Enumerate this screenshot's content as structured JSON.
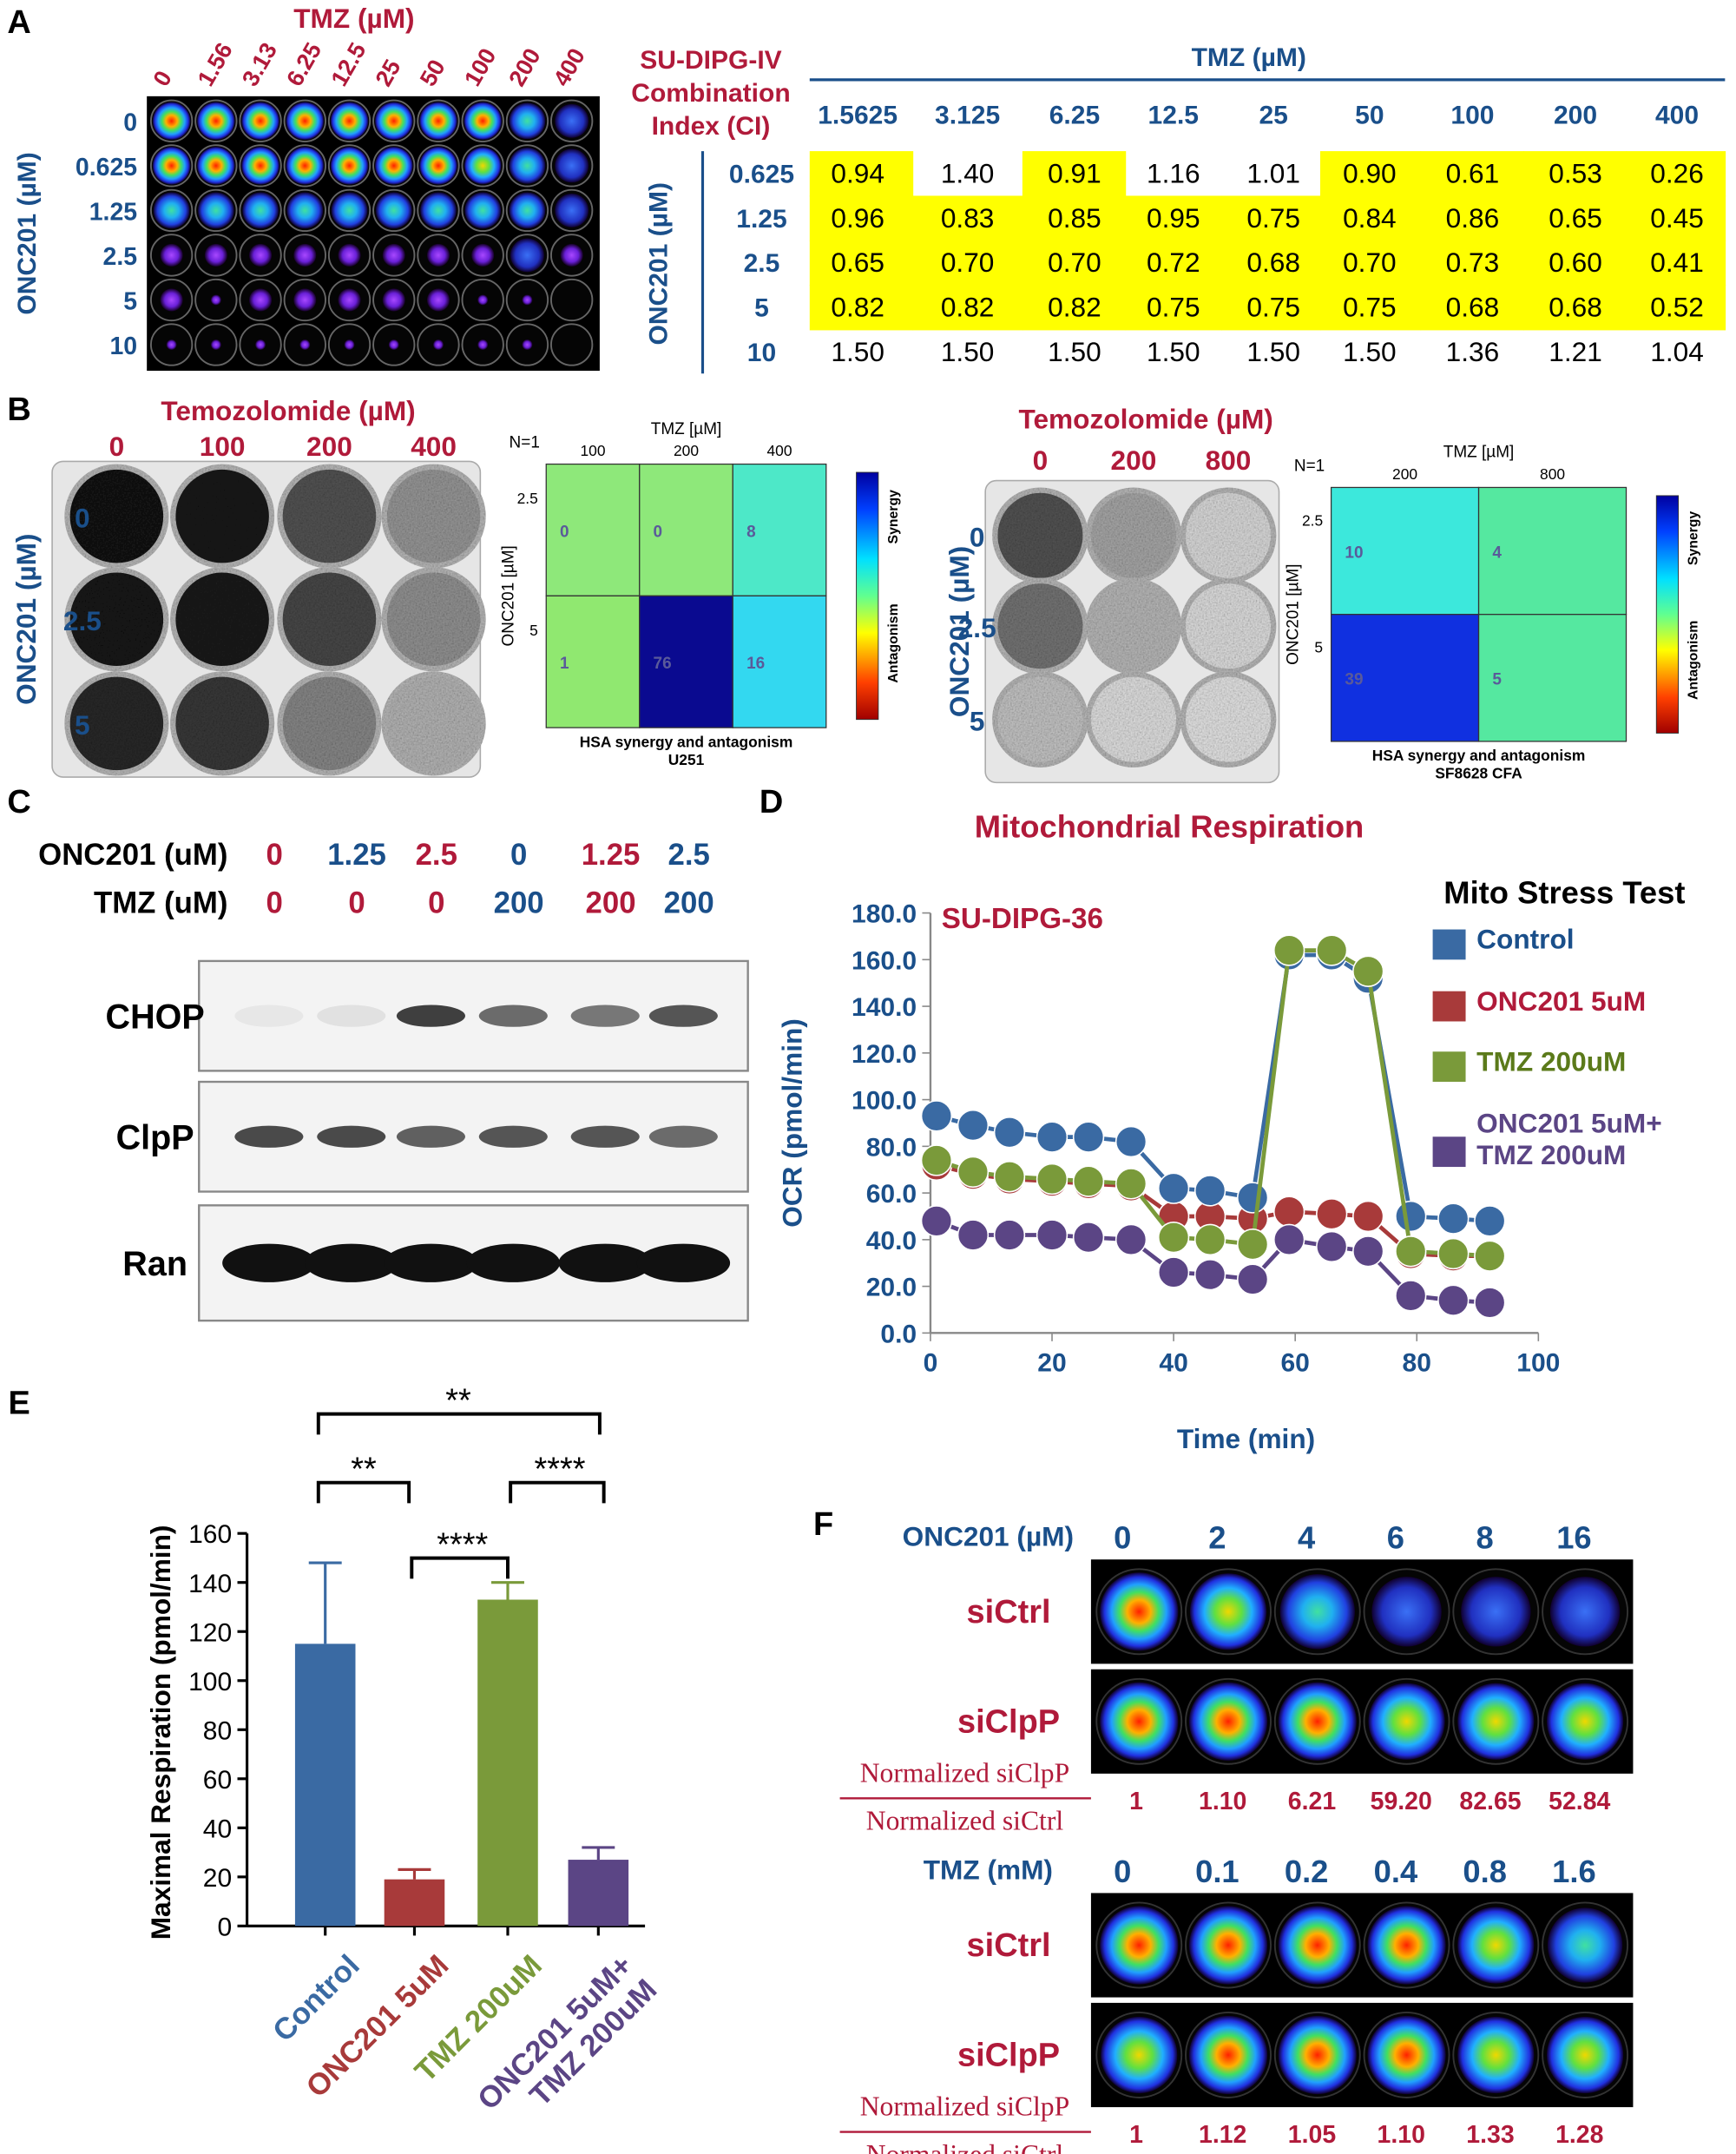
{
  "panels": {
    "a": {
      "label": "A",
      "tmz_title": "TMZ (µM)",
      "tmz_doses": [
        "0",
        "1.56",
        "3.13",
        "6.25",
        "12.5",
        "25",
        "50",
        "100",
        "200",
        "400"
      ],
      "onc_title": "ONC201 (µM)",
      "onc_doses": [
        "0",
        "0.625",
        "1.25",
        "2.5",
        "5",
        "10"
      ],
      "ci_title": [
        "SU-DIPG-IV",
        "Combination",
        "Index (CI)"
      ],
      "ci_table": {
        "column_title": "TMZ (µM)",
        "columns": [
          "1.5625",
          "3.125",
          "6.25",
          "12.5",
          "25",
          "50",
          "100",
          "200",
          "400"
        ],
        "row_title": "ONC201 (µM)",
        "rows": [
          {
            "label": "0.625",
            "values": [
              "0.94",
              "1.40",
              "0.91",
              "1.16",
              "1.01",
              "0.90",
              "0.61",
              "0.53",
              "0.26"
            ]
          },
          {
            "label": "1.25",
            "values": [
              "0.96",
              "0.83",
              "0.85",
              "0.95",
              "0.75",
              "0.84",
              "0.86",
              "0.65",
              "0.45"
            ]
          },
          {
            "label": "2.5",
            "values": [
              "0.65",
              "0.70",
              "0.70",
              "0.72",
              "0.68",
              "0.70",
              "0.73",
              "0.60",
              "0.41"
            ]
          },
          {
            "label": "5",
            "values": [
              "0.82",
              "0.82",
              "0.82",
              "0.75",
              "0.75",
              "0.75",
              "0.68",
              "0.68",
              "0.52"
            ]
          },
          {
            "label": "10",
            "values": [
              "1.50",
              "1.50",
              "1.50",
              "1.50",
              "1.50",
              "1.50",
              "1.36",
              "1.21",
              "1.04"
            ]
          }
        ]
      }
    },
    "b": {
      "label": "B",
      "assays": [
        {
          "title": "Temozolomide (µM)",
          "tmz_doses": [
            "0",
            "100",
            "200",
            "400"
          ],
          "onc_title": "ONC201 (µM)",
          "onc_doses": [
            "0",
            "2.5",
            "5"
          ],
          "heatmap": {
            "n": "N=1",
            "x_title": "TMZ [µM]",
            "x_labels": [
              "100",
              "200",
              "400"
            ],
            "y_title": "ONC201 [µM]",
            "y_labels": [
              "2.5",
              "5"
            ],
            "cells": [
              [
                0,
                0,
                8
              ],
              [
                1,
                76,
                16
              ]
            ],
            "colorbar": [
              "Synergy",
              "Antagonism"
            ],
            "caption": "HSA synergy and antagonism",
            "cell_line": "U251"
          }
        },
        {
          "title": "Temozolomide (µM)",
          "tmz_doses": [
            "0",
            "200",
            "800"
          ],
          "onc_title": "ONC201 (µM)",
          "onc_doses": [
            "0",
            "2.5",
            "5"
          ],
          "heatmap": {
            "n": "N=1",
            "x_title": "TMZ [µM]",
            "x_labels": [
              "200",
              "800"
            ],
            "y_title": "ONC201 [µM]",
            "y_labels": [
              "2.5",
              "5"
            ],
            "cells": [
              [
                10,
                4
              ],
              [
                39,
                5
              ]
            ],
            "colorbar": [
              "Synergy",
              "Antagonism"
            ],
            "caption": "HSA synergy and antagonism",
            "cell_line": "SF8628 CFA"
          }
        }
      ]
    },
    "c": {
      "label": "C",
      "rows": [
        {
          "label": "ONC201 (uM)",
          "values": [
            "0",
            "1.25",
            "2.5",
            "0",
            "1.25",
            "2.5"
          ]
        },
        {
          "label": "TMZ (uM)",
          "values": [
            "0",
            "0",
            "0",
            "200",
            "200",
            "200"
          ]
        }
      ],
      "blots": [
        "CHOP",
        "ClpP",
        "Ran"
      ]
    },
    "d": {
      "label": "D"
    },
    "e": {
      "label": "E"
    },
    "f": {
      "label": "F",
      "groups": [
        {
          "title": "ONC201 (µM)",
          "doses": [
            "0",
            "2",
            "4",
            "6",
            "8",
            "16"
          ],
          "rows": [
            "siCtrl",
            "siClpP"
          ],
          "numerator": "Normalized siClpP",
          "denominator": "Normalized siCtrl",
          "ratios": [
            "1",
            "1.10",
            "6.21",
            "59.20",
            "82.65",
            "52.84"
          ]
        },
        {
          "title": "TMZ (mM)",
          "doses": [
            "0",
            "0.1",
            "0.2",
            "0.4",
            "0.8",
            "1.6"
          ],
          "rows": [
            "siCtrl",
            "siClpP"
          ],
          "numerator": "Normalized siClpP",
          "denominator": "Normalized siCtrl",
          "ratios": [
            "1",
            "1.12",
            "1.05",
            "1.10",
            "1.33",
            "1.28"
          ]
        }
      ]
    }
  },
  "chart_data": [
    {
      "type": "line",
      "title": "Mitochondrial Respiration",
      "subtitle": "SU-DIPG-36",
      "xlabel": "Time (min)",
      "ylabel": "OCR (pmol/min)",
      "legend_title": "Mito Stress Test",
      "x": [
        1,
        7,
        13,
        20,
        26,
        33,
        40,
        46,
        53,
        59,
        66,
        72,
        79,
        86,
        92
      ],
      "series": [
        {
          "name": "Control",
          "color": "#3a6aa3",
          "values": [
            93,
            89,
            86,
            84,
            84,
            82,
            62,
            61,
            58,
            162,
            162,
            152,
            50,
            49,
            48
          ]
        },
        {
          "name": "ONC201 5uM",
          "color": "#a83a3a",
          "values": [
            72,
            68,
            66,
            65,
            64,
            63,
            50,
            50,
            49,
            52,
            51,
            50,
            34,
            33,
            33
          ]
        },
        {
          "name": "TMZ 200uM",
          "color": "#7a9a3a",
          "values": [
            74,
            69,
            67,
            66,
            65,
            64,
            41,
            40,
            38,
            164,
            164,
            155,
            35,
            34,
            33
          ]
        },
        {
          "name": "ONC201 5uM+ TMZ 200uM",
          "color": "#5b4585",
          "values": [
            48,
            42,
            42,
            42,
            41,
            40,
            26,
            25,
            23,
            40,
            37,
            35,
            16,
            14,
            13
          ]
        }
      ],
      "xlim": [
        0,
        100
      ],
      "ylim": [
        0,
        180
      ],
      "xticks": [
        0,
        20,
        40,
        60,
        80,
        100
      ],
      "yticks": [
        {
          "value": 0,
          "label": "0.0"
        },
        {
          "value": 20,
          "label": "20.0"
        },
        {
          "value": 40,
          "label": "40.0"
        },
        {
          "value": 60,
          "label": "60.0"
        },
        {
          "value": 80,
          "label": "80.0"
        },
        {
          "value": 100,
          "label": "100.0"
        },
        {
          "value": 120,
          "label": "120.0"
        },
        {
          "value": 140,
          "label": "140.0"
        },
        {
          "value": 160,
          "label": "160.0"
        },
        {
          "value": 180,
          "label": "180.0"
        }
      ],
      "legend": "right"
    },
    {
      "type": "bar",
      "ylabel": "Maximal Respiration (pmol/min)",
      "categories": [
        "Control",
        "ONC201 5uM",
        "TMZ 200uM",
        "ONC201 5uM+ TMZ 200uM"
      ],
      "colors": [
        "#3a6aa3",
        "#a83a3a",
        "#7a9a3a",
        "#5b4585"
      ],
      "values": [
        115,
        19,
        133,
        27
      ],
      "errors": [
        33,
        4,
        7,
        5
      ],
      "ylim": [
        0,
        160
      ],
      "yticks": [
        0,
        20,
        40,
        60,
        80,
        100,
        120,
        140,
        160
      ],
      "annotations": [
        "**",
        "**",
        "****",
        "****"
      ]
    }
  ]
}
